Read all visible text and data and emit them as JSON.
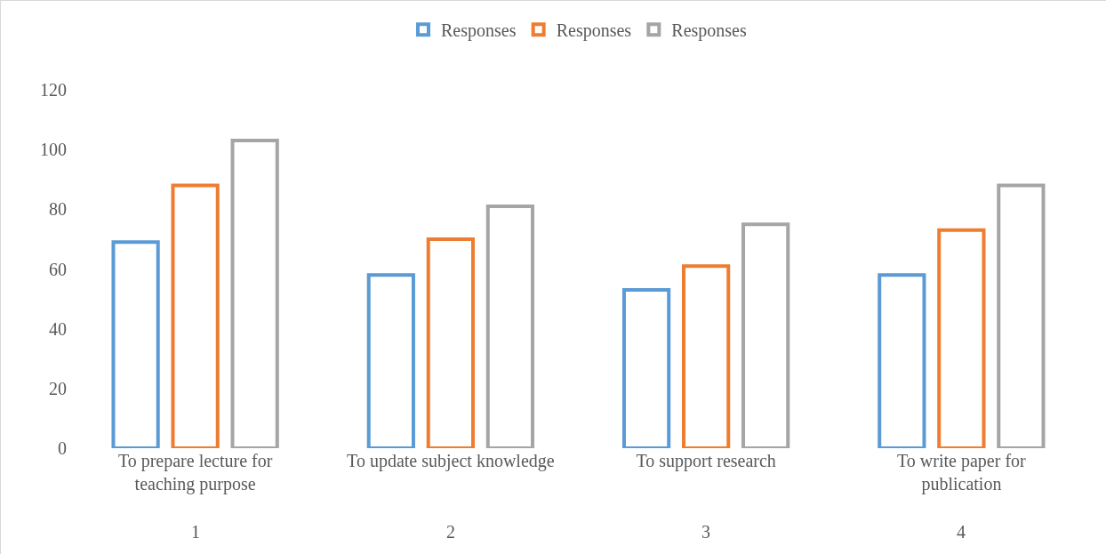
{
  "chart_data": {
    "type": "bar",
    "categories": [
      "To prepare lecture for teaching purpose",
      "To update subject knowledge",
      "To support research",
      "To write paper for publication"
    ],
    "series": [
      {
        "name": "Responses",
        "color": "#5b9bd5",
        "values": [
          69,
          58,
          53,
          58
        ]
      },
      {
        "name": "Responses",
        "color": "#ed7d31",
        "values": [
          88,
          70,
          61,
          73
        ]
      },
      {
        "name": "Responses",
        "color": "#a5a5a5",
        "values": [
          103,
          81,
          75,
          88
        ]
      }
    ],
    "ylim": [
      0,
      120
    ],
    "yticks": [
      0,
      20,
      40,
      60,
      80,
      100,
      120
    ],
    "grid": false,
    "legend": "top",
    "annotations": [
      "1",
      "2",
      "3",
      "4"
    ]
  }
}
